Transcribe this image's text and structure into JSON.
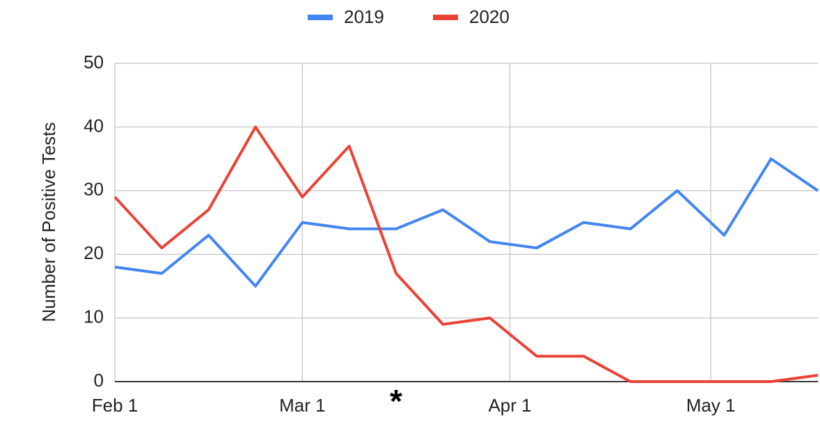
{
  "chart_data": {
    "type": "line",
    "y_label": "Number of Positive Tests",
    "x": [
      0,
      7,
      14,
      21,
      28,
      35,
      42,
      49,
      56,
      63,
      70,
      77,
      84,
      91,
      98,
      105
    ],
    "series": [
      {
        "name": "2019",
        "color": "#4285f4",
        "values": [
          18,
          17,
          23,
          15,
          25,
          24,
          24,
          27,
          22,
          21,
          25,
          24,
          30,
          23,
          35,
          30
        ]
      },
      {
        "name": "2020",
        "color": "#ea4335",
        "values": [
          29,
          21,
          27,
          40,
          29,
          37,
          17,
          9,
          10,
          4,
          4,
          0,
          0,
          0,
          0,
          1
        ]
      }
    ],
    "xlim": [
      0,
      105
    ],
    "xticks": [
      {
        "value": 0,
        "label": "Feb 1"
      },
      {
        "value": 28,
        "label": "Mar 1"
      },
      {
        "value": 59,
        "label": "Apr 1"
      },
      {
        "value": 89,
        "label": "May 1"
      }
    ],
    "ylim": [
      0,
      50
    ],
    "yticks": [
      0,
      10,
      20,
      30,
      40,
      50
    ],
    "grid": true,
    "legend": "top",
    "annotations": [
      {
        "text": "*",
        "x": 42
      }
    ]
  }
}
